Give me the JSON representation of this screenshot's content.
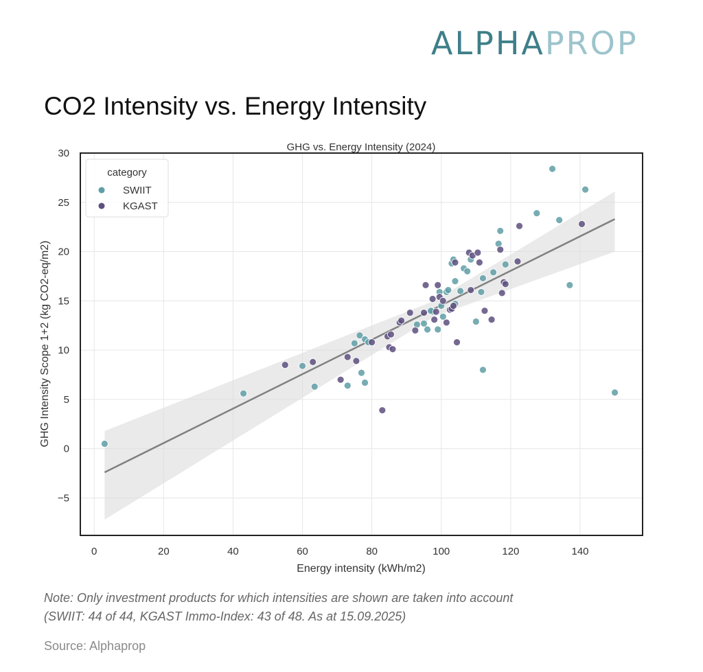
{
  "logo": {
    "part1": "ALPHA",
    "part2": "PROP"
  },
  "page_title": "CO2 Intensity vs. Energy Intensity",
  "note_line1": "Note: Only investment products for which intensities are shown are taken into account",
  "note_line2": "(SWIIT: 44 of 44, KGAST Immo-Index: 43 of 48. As at 15.09.2025)",
  "source": "Source: Alphaprop",
  "colors": {
    "SWIIT": "#5f9ea6",
    "KGAST": "#5d4f7e",
    "regression": "#808080",
    "ci_band": "#dcdcdc"
  },
  "chart_data": {
    "type": "scatter",
    "title": "GHG vs. Energy Intensity (2024)",
    "xlabel": "Energy intensity (kWh/m2)",
    "ylabel": "GHG Intensity Scope 1+2 (kg CO2-eq/m2)",
    "xlim": [
      -4,
      158
    ],
    "ylim": [
      -8.8,
      30
    ],
    "xticks": [
      0,
      20,
      40,
      60,
      80,
      100,
      120,
      140
    ],
    "yticks": [
      -5,
      0,
      5,
      10,
      15,
      20,
      25,
      30
    ],
    "ytick_labels": [
      "−5",
      "0",
      "5",
      "10",
      "15",
      "20",
      "25",
      "30"
    ],
    "grid": true,
    "legend": {
      "title": "category",
      "position": "top-left",
      "entries": [
        "SWIIT",
        "KGAST"
      ]
    },
    "regression": {
      "x_range": [
        3,
        150
      ],
      "y_start": -2.4,
      "y_end": 23.3,
      "ci_lower": [
        -7.2,
        20.0
      ],
      "ci_upper": [
        1.8,
        26.1
      ]
    },
    "series": [
      {
        "name": "SWIIT",
        "points": [
          [
            3,
            0.5
          ],
          [
            43,
            5.6
          ],
          [
            60,
            8.4
          ],
          [
            63.5,
            6.3
          ],
          [
            73,
            6.4
          ],
          [
            75,
            10.7
          ],
          [
            76.5,
            11.5
          ],
          [
            77,
            7.7
          ],
          [
            78,
            11.1
          ],
          [
            78,
            6.7
          ],
          [
            79,
            10.8
          ],
          [
            93,
            12.6
          ],
          [
            95,
            12.7
          ],
          [
            96,
            12.1
          ],
          [
            97.5,
            13.9
          ],
          [
            99,
            12.1
          ],
          [
            99.5,
            15.9
          ],
          [
            100,
            14.5
          ],
          [
            100.5,
            13.4
          ],
          [
            101.5,
            15.9
          ],
          [
            102,
            16.1
          ],
          [
            103,
            18.8
          ],
          [
            103.5,
            19.2
          ],
          [
            104,
            17.0
          ],
          [
            104,
            14.7
          ],
          [
            105.5,
            16.0
          ],
          [
            106.5,
            18.3
          ],
          [
            107.5,
            18.0
          ],
          [
            108.5,
            19.2
          ],
          [
            110,
            12.9
          ],
          [
            111.5,
            15.9
          ],
          [
            112,
            17.3
          ],
          [
            112,
            8.0
          ],
          [
            115,
            17.9
          ],
          [
            116.5,
            20.8
          ],
          [
            117,
            22.1
          ],
          [
            118.5,
            18.7
          ],
          [
            127.5,
            23.9
          ],
          [
            132,
            28.4
          ],
          [
            134,
            23.2
          ],
          [
            137,
            16.6
          ],
          [
            141.5,
            26.3
          ],
          [
            150,
            5.7
          ],
          [
            97,
            14.0
          ]
        ]
      },
      {
        "name": "KGAST",
        "points": [
          [
            55,
            8.5
          ],
          [
            63,
            8.8
          ],
          [
            71,
            7.0
          ],
          [
            73,
            9.3
          ],
          [
            75.5,
            8.9
          ],
          [
            80,
            10.8
          ],
          [
            83,
            3.9
          ],
          [
            84.5,
            11.4
          ],
          [
            85,
            10.3
          ],
          [
            85.5,
            11.6
          ],
          [
            86,
            10.1
          ],
          [
            88,
            12.8
          ],
          [
            88.5,
            13.0
          ],
          [
            91,
            13.8
          ],
          [
            92.5,
            12.0
          ],
          [
            95.5,
            16.6
          ],
          [
            97.5,
            15.2
          ],
          [
            98,
            13.1
          ],
          [
            98.5,
            13.9
          ],
          [
            99,
            16.6
          ],
          [
            99.5,
            15.4
          ],
          [
            100.5,
            15.0
          ],
          [
            101.5,
            12.8
          ],
          [
            102.5,
            14.1
          ],
          [
            103,
            14.2
          ],
          [
            103.5,
            14.5
          ],
          [
            104,
            18.9
          ],
          [
            104.5,
            10.8
          ],
          [
            108,
            19.9
          ],
          [
            108.5,
            16.1
          ],
          [
            109,
            19.6
          ],
          [
            110.5,
            19.9
          ],
          [
            111,
            18.9
          ],
          [
            112.5,
            14.0
          ],
          [
            114.5,
            13.1
          ],
          [
            117,
            20.2
          ],
          [
            117.5,
            15.8
          ],
          [
            118,
            16.9
          ],
          [
            118.5,
            16.7
          ],
          [
            122,
            19.0
          ],
          [
            122.5,
            22.6
          ],
          [
            140.5,
            22.8
          ],
          [
            95,
            13.8
          ]
        ]
      }
    ]
  }
}
